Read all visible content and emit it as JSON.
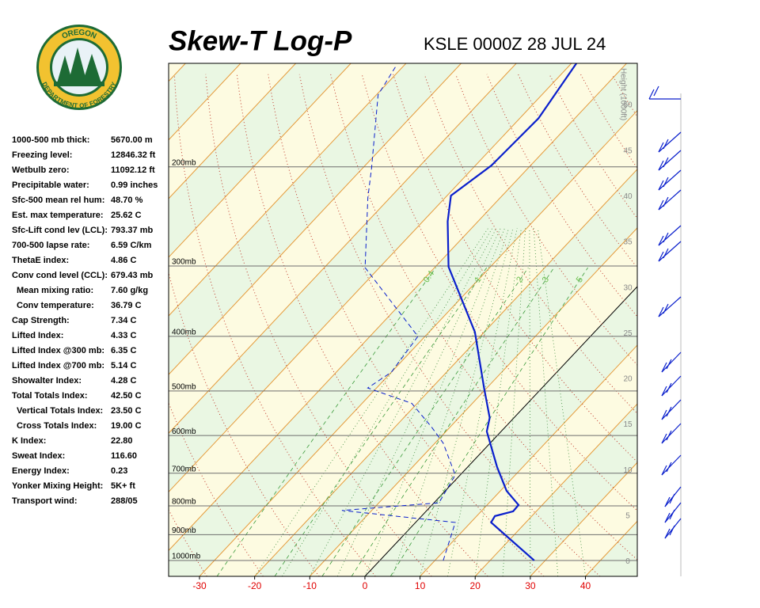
{
  "logo": {
    "top": "OREGON",
    "bottom": "DEPARTMENT OF FORESTRY"
  },
  "stats": [
    {
      "label": "1000-500 mb thick:",
      "value": "5670.00 m"
    },
    {
      "label": "Freezing level:",
      "value": "12846.32 ft"
    },
    {
      "label": "Wetbulb zero:",
      "value": "11092.12 ft"
    },
    {
      "label": "Precipitable water:",
      "value": "0.99 inches"
    },
    {
      "label": "Sfc-500 mean rel hum:",
      "value": "48.70 %"
    },
    {
      "label": "Est. max temperature:",
      "value": "25.62 C"
    },
    {
      "label": "Sfc-Lift cond lev (LCL):",
      "value": "793.37 mb"
    },
    {
      "label": "700-500 lapse rate:",
      "value": "6.59 C/km"
    },
    {
      "label": "ThetaE index:",
      "value": "4.86 C"
    },
    {
      "label": "Conv cond level (CCL):",
      "value": "679.43 mb"
    },
    {
      "label": "Mean mixing ratio:",
      "value": "7.60 g/kg"
    },
    {
      "label": "Conv temperature:",
      "value": "36.79 C"
    },
    {
      "label": "Cap Strength:",
      "value": "7.34 C"
    },
    {
      "label": "Lifted Index:",
      "value": "4.33 C"
    },
    {
      "label": "Lifted Index @300 mb:",
      "value": "6.35 C"
    },
    {
      "label": "Lifted Index @700 mb:",
      "value": "5.14 C"
    },
    {
      "label": "Showalter Index:",
      "value": "4.28 C"
    },
    {
      "label": "Total Totals Index:",
      "value": "42.50 C"
    },
    {
      "label": "Vertical Totals Index:",
      "value": "23.50 C"
    },
    {
      "label": "Cross Totals Index:",
      "value": "19.00 C"
    },
    {
      "label": "K Index:",
      "value": "22.80"
    },
    {
      "label": "Sweat Index:",
      "value": "116.60"
    },
    {
      "label": "Energy Index:",
      "value": "0.23"
    },
    {
      "label": "Yonker Mixing Height:",
      "value": "5K+ ft"
    },
    {
      "label": "Transport wind:",
      "value": "288/05"
    }
  ],
  "chart_data": {
    "type": "skewt",
    "title": "Skew-T Log-P",
    "subtitle": "KSLE 0000Z 28 JUL 24",
    "xlim": [
      -35.6,
      49.4
    ],
    "xticks": [
      -30,
      -20,
      -10,
      0,
      10,
      20,
      30,
      40
    ],
    "ylim": [
      1067,
      131
    ],
    "log_y": true,
    "grid": true,
    "yticks": [
      {
        "value": 1000,
        "label": "1000mb"
      },
      {
        "value": 900,
        "label": "900mb"
      },
      {
        "value": 800,
        "label": "800mb"
      },
      {
        "value": 700,
        "label": "700mb"
      },
      {
        "value": 600,
        "label": "600mb"
      },
      {
        "value": 500,
        "label": "500mb"
      },
      {
        "value": 400,
        "label": "400mb"
      },
      {
        "value": 300,
        "label": "300mb"
      },
      {
        "value": 200,
        "label": "200mb"
      }
    ],
    "y2label": "Height (1000ft)",
    "y2lim": [
      -1.6,
      54.6
    ],
    "y2ticks": [
      0,
      5,
      10,
      15,
      20,
      25,
      30,
      35,
      40,
      45,
      50
    ],
    "mixing_ratio_labels": [
      0.4,
      1,
      2,
      3,
      5
    ],
    "series": [
      {
        "color": "#0a1fcc",
        "dash": false,
        "pressure": [
          1000,
          856,
          834,
          818,
          797,
          752,
          682,
          590,
          558,
          494,
          393,
          301,
          250,
          225,
          199,
          164,
          131
        ],
        "values": [
          28.0,
          13.7,
          13.3,
          15.8,
          15.7,
          11.1,
          5.3,
          -2.6,
          -4.4,
          -10.5,
          -21.7,
          -37.6,
          -45.5,
          -49.3,
          -47.1,
          -46.6,
          -49.1
        ]
      },
      {
        "color": "#0a1fcc",
        "dash": true,
        "pressure": [
          1000,
          856,
          815,
          790,
          705,
          619,
          580,
          526,
          494,
          463,
          400,
          302,
          227,
          201,
          149,
          133
        ],
        "values": [
          11.5,
          7.2,
          -15.4,
          0.9,
          -0.9,
          -8.5,
          -13.3,
          -21.0,
          -31.6,
          -30.0,
          -31.3,
          -52.6,
          -64.0,
          -68.4,
          -79.7,
          -81.3
        ]
      }
    ]
  }
}
